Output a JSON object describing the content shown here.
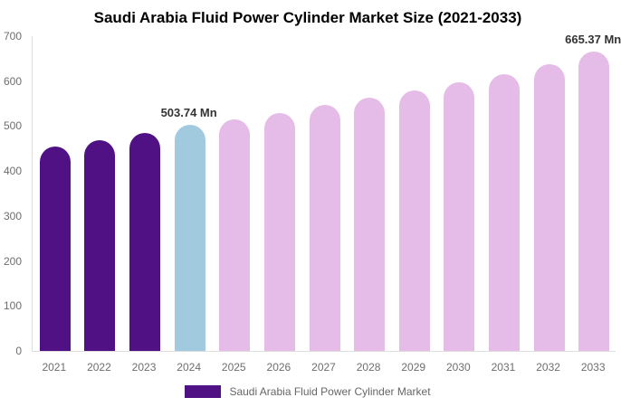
{
  "title": "Saudi Arabia Fluid Power Cylinder Market Size (2021-2033)",
  "legend": {
    "label": "Saudi Arabia Fluid Power Cylinder Market",
    "swatch_color": "#4F1184"
  },
  "colors": {
    "historical_bar": "#4F1184",
    "highlight_bar": "#A2CADF",
    "forecast_bar": "#E5BCE8",
    "axis_line": "#DDDDDD",
    "tick_text": "#6E6E6E",
    "annotation_text": "#333333",
    "title_text": "#000000"
  },
  "chart_data": {
    "type": "bar",
    "title": "Saudi Arabia Fluid Power Cylinder Market Size (2021-2033)",
    "xlabel": "",
    "ylabel": "",
    "categories": [
      "2021",
      "2022",
      "2023",
      "2024",
      "2025",
      "2026",
      "2027",
      "2028",
      "2029",
      "2030",
      "2031",
      "2032",
      "2033"
    ],
    "values": [
      455,
      468,
      485,
      503.74,
      514,
      530,
      547,
      563,
      580,
      598,
      616,
      637,
      665.37
    ],
    "bar_colors": [
      "#4F1184",
      "#4F1184",
      "#4F1184",
      "#A2CADF",
      "#E5BCE8",
      "#E5BCE8",
      "#E5BCE8",
      "#E5BCE8",
      "#E5BCE8",
      "#E5BCE8",
      "#E5BCE8",
      "#E5BCE8",
      "#E5BCE8"
    ],
    "ylim": [
      0,
      700
    ],
    "yticks": [
      0,
      100,
      200,
      300,
      400,
      500,
      600,
      700
    ],
    "grid": false,
    "legend_position": "bottom",
    "legend_entries": [
      "Saudi Arabia Fluid Power Cylinder Market"
    ],
    "annotations": [
      {
        "category": "2024",
        "text": "503.74 Mn"
      },
      {
        "category": "2033",
        "text": "665.37 Mn"
      }
    ]
  }
}
